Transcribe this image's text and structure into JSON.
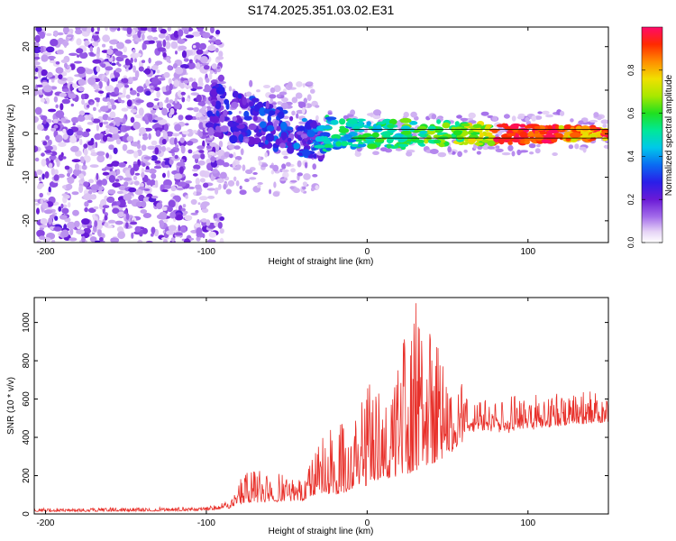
{
  "title": "S174.2025.351.03.02.E31",
  "chart_data": [
    {
      "type": "heatmap",
      "xlabel": "Height of straight line (km)",
      "ylabel": "Frequency (Hz)",
      "xlim": [
        -207,
        150
      ],
      "ylim": [
        -25,
        24.5
      ],
      "xticks": [
        -200,
        -100,
        0,
        100
      ],
      "yticks": [
        -20,
        -10,
        0,
        10,
        20
      ],
      "colorbar": {
        "label": "Normalized spectral amplitude",
        "range": [
          0,
          1
        ],
        "ticks": [
          0.0,
          0.2,
          0.4,
          0.6,
          0.8
        ],
        "tick_labels": [
          "0.0",
          "0.2",
          "0.4",
          "0.6",
          "0.8"
        ]
      },
      "regions": [
        {
          "name": "noise",
          "x_range": [
            -207,
            -90
          ],
          "description_level": "low amplitude scattered"
        },
        {
          "name": "transition",
          "x_range": [
            -100,
            -30
          ],
          "center_freq": [
            6,
            -6
          ],
          "amplitude": [
            0.2,
            0.4
          ]
        },
        {
          "name": "signal",
          "x_range": [
            -30,
            150
          ],
          "center_freq": 0,
          "amplitude": [
            0.4,
            1.0
          ]
        }
      ],
      "line_y": [
        1,
        -1
      ]
    },
    {
      "type": "line",
      "xlabel": "Height of straight line (km)",
      "ylabel": "SNR (10 * v/v)",
      "xlim": [
        -207,
        150
      ],
      "ylim": [
        0,
        1130
      ],
      "xticks": [
        -200,
        -100,
        0,
        100
      ],
      "yticks": [
        0,
        200,
        400,
        600,
        800,
        1000
      ],
      "color": "#e8302a",
      "envelope": {
        "x": [
          -207,
          -120,
          -100,
          -85,
          -75,
          -60,
          -40,
          -30,
          -20,
          -10,
          0,
          10,
          20,
          30,
          40,
          50,
          60,
          70,
          80,
          100,
          120,
          150
        ],
        "base": [
          12,
          15,
          18,
          30,
          60,
          60,
          70,
          110,
          100,
          120,
          150,
          180,
          200,
          220,
          260,
          300,
          360,
          380,
          400,
          430,
          460,
          480
        ],
        "peak": [
          30,
          35,
          40,
          70,
          250,
          230,
          200,
          420,
          450,
          520,
          700,
          720,
          820,
          1130,
          1130,
          700,
          680,
          630,
          620,
          620,
          640,
          640
        ]
      }
    }
  ]
}
